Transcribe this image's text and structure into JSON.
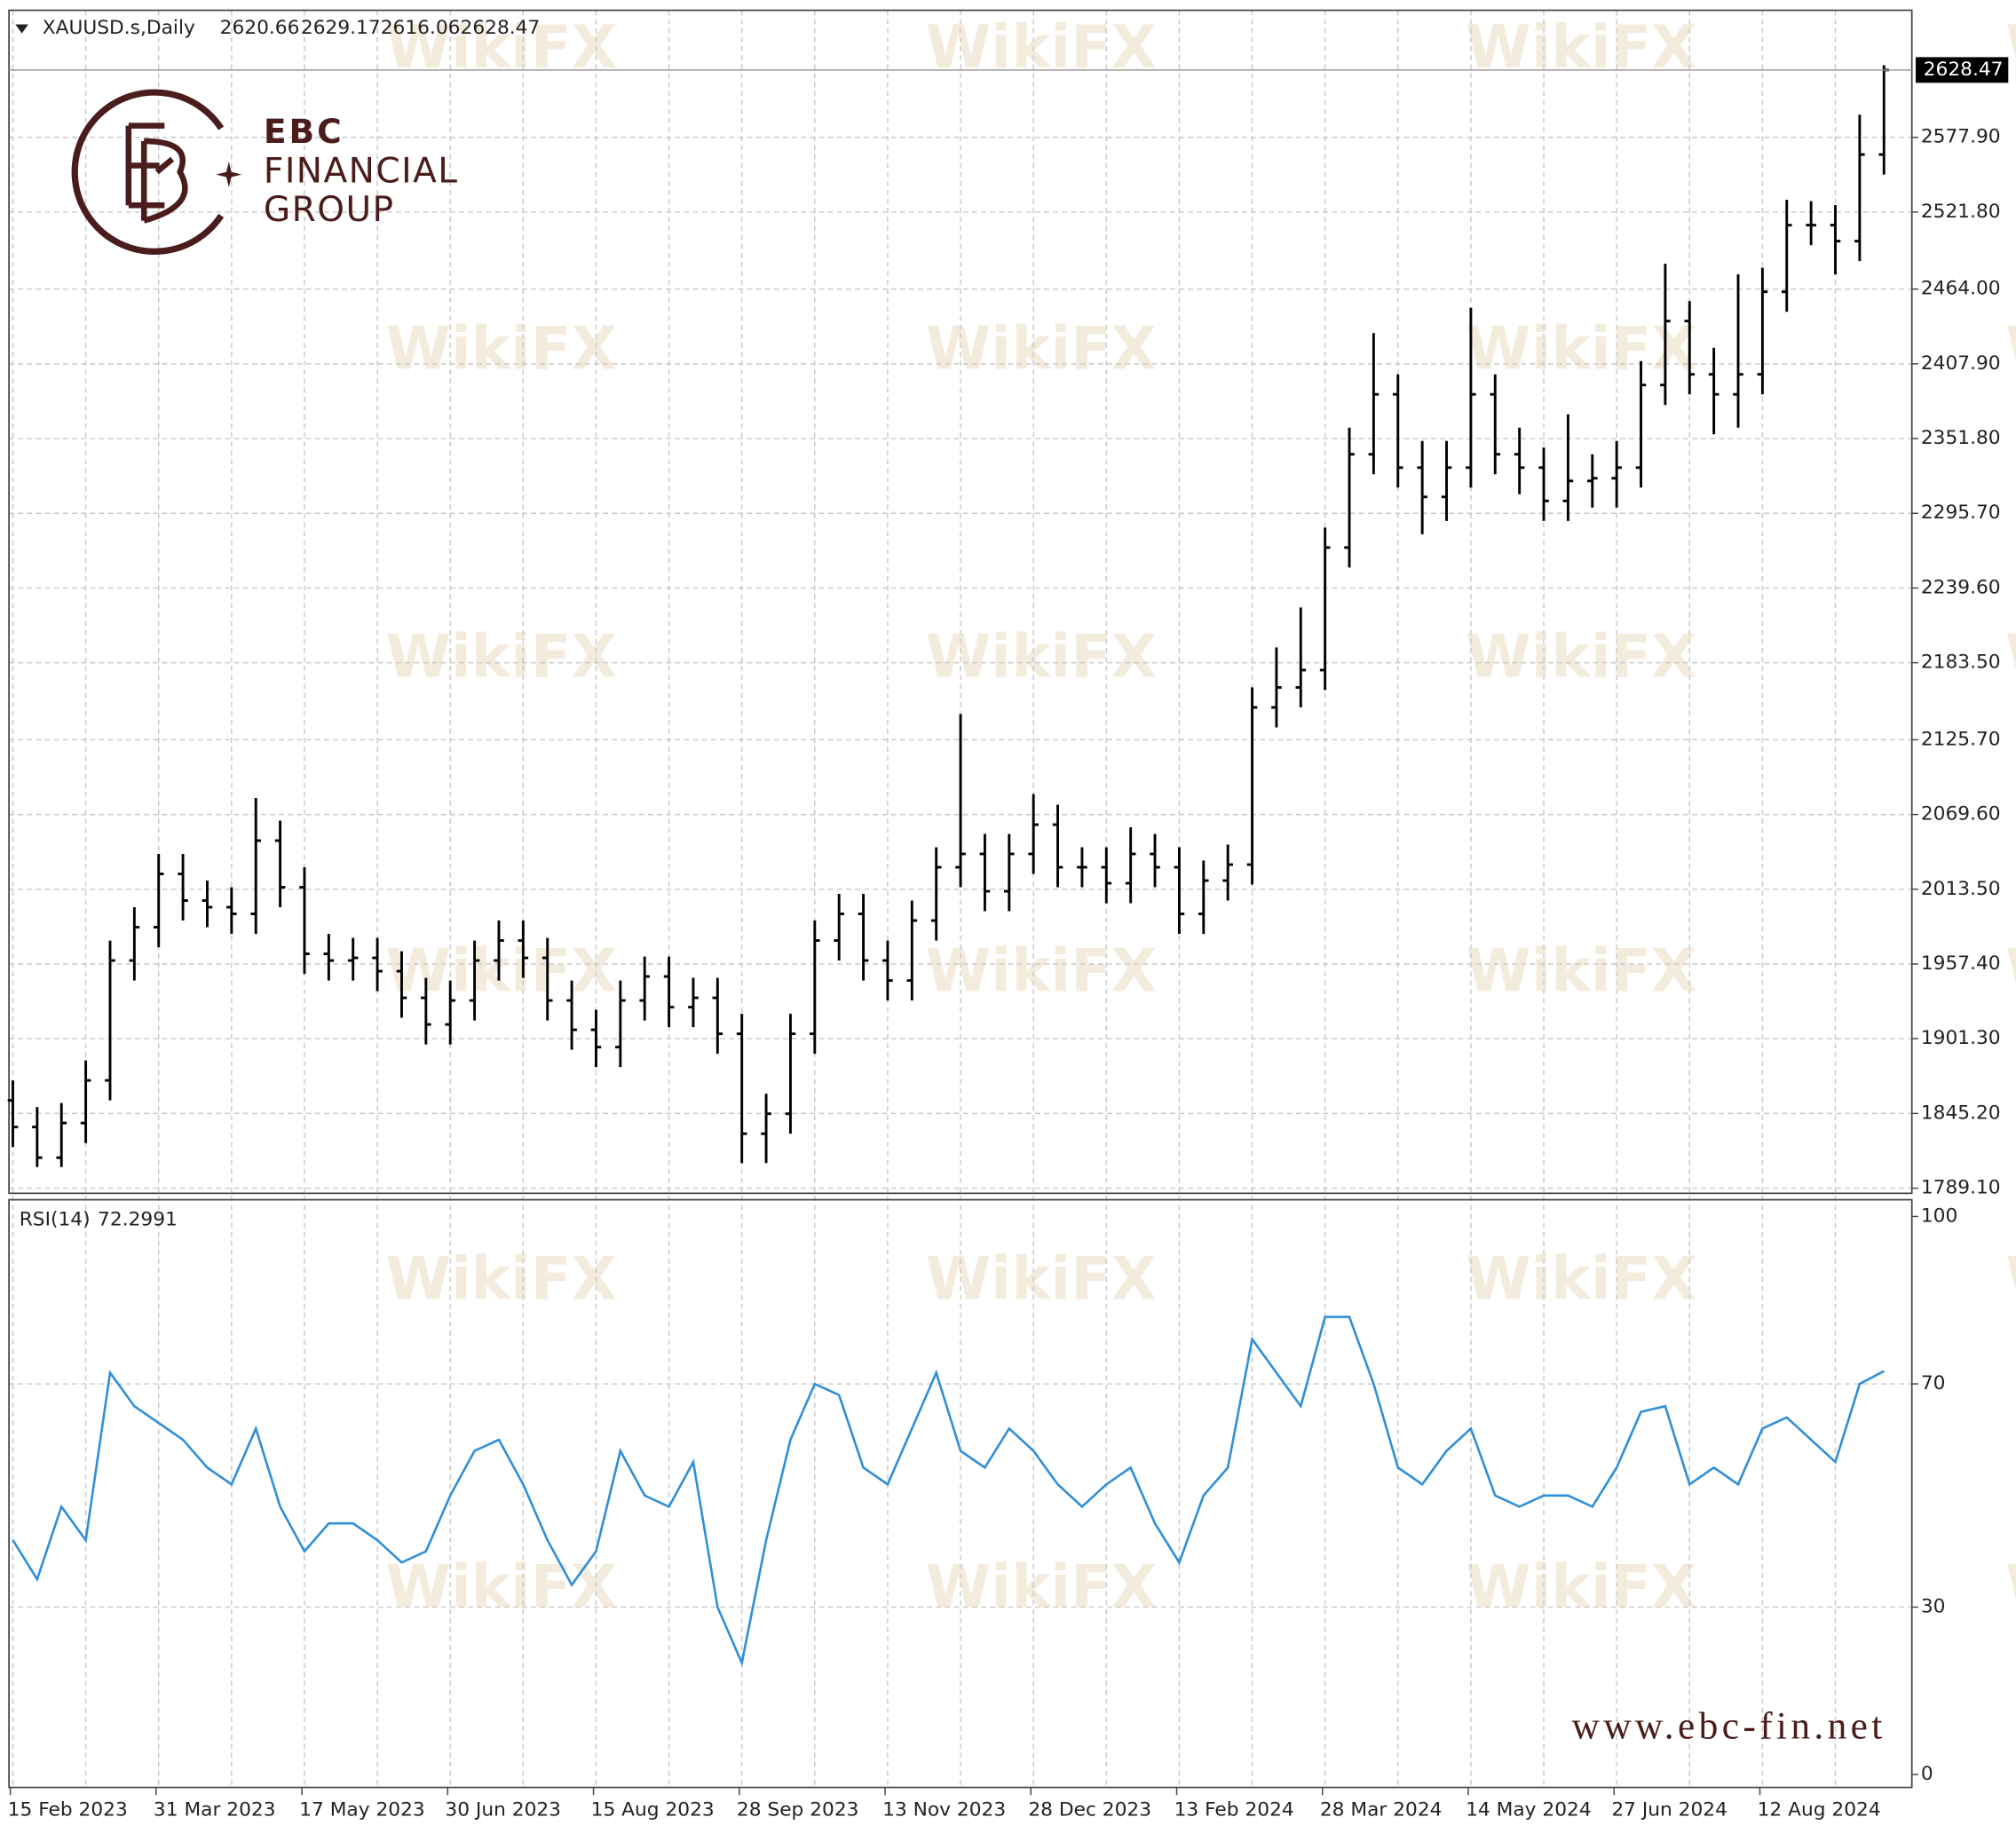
{
  "header": {
    "symbol": "XAUUSD.s,Daily",
    "values": [
      2620.66,
      2629.17,
      2616.06,
      2628.47
    ]
  },
  "logo": {
    "name": "EBC",
    "line1": "FINANCIAL",
    "line2": "GROUP"
  },
  "website": "www.ebc-fin.net",
  "watermark": "WikiFX",
  "chart_data": [
    {
      "type": "ohlc",
      "color": "#000000",
      "grid": true,
      "open": [
        1855,
        1835,
        1812,
        1838,
        1870,
        1960,
        1985,
        2025,
        2005,
        2000,
        1995,
        2050,
        2015,
        1965,
        1960,
        1962,
        1952,
        1932,
        1912,
        1930,
        1960,
        1975,
        1962,
        1930,
        1908,
        1895,
        1930,
        1948,
        1925,
        1932,
        1905,
        1830,
        1845,
        1905,
        1975,
        1995,
        1960,
        1945,
        1990,
        2030,
        2040,
        2012,
        2040,
        2062,
        2030,
        2030,
        2018,
        2040,
        2030,
        1995,
        2020,
        2032,
        2150,
        2165,
        2178,
        2270,
        2340,
        2385,
        2330,
        2308,
        2330,
        2385,
        2340,
        2330,
        2305,
        2320,
        2322,
        2330,
        2392,
        2440,
        2400,
        2385,
        2400,
        2462,
        2512,
        2512,
        2500,
        2565
      ],
      "high": [
        1870,
        1850,
        1853,
        1885,
        1975,
        2000,
        2040,
        2040,
        2020,
        2015,
        2082,
        2065,
        2030,
        1980,
        1977,
        1977,
        1967,
        1947,
        1945,
        1975,
        1990,
        1990,
        1977,
        1945,
        1923,
        1945,
        1963,
        1963,
        1947,
        1947,
        1920,
        1860,
        1920,
        1990,
        2010,
        2010,
        1975,
        2005,
        2045,
        2145,
        2055,
        2055,
        2085,
        2077,
        2045,
        2045,
        2060,
        2055,
        2045,
        2035,
        2047,
        2165,
        2195,
        2225,
        2285,
        2360,
        2431,
        2400,
        2350,
        2350,
        2450,
        2400,
        2360,
        2345,
        2370,
        2340,
        2350,
        2410,
        2483,
        2455,
        2420,
        2475,
        2480,
        2531,
        2530,
        2527,
        2595,
        2632
      ],
      "low": [
        1820,
        1805,
        1805,
        1823,
        1855,
        1945,
        1970,
        1990,
        1985,
        1980,
        1980,
        2000,
        1950,
        1945,
        1945,
        1937,
        1917,
        1897,
        1897,
        1915,
        1945,
        1947,
        1915,
        1893,
        1880,
        1880,
        1915,
        1910,
        1910,
        1890,
        1808,
        1808,
        1830,
        1890,
        1960,
        1945,
        1930,
        1930,
        1975,
        2015,
        1997,
        1997,
        2025,
        2015,
        2015,
        2003,
        2003,
        2015,
        1980,
        1980,
        2005,
        2017,
        2135,
        2150,
        2163,
        2255,
        2325,
        2315,
        2280,
        2290,
        2315,
        2325,
        2310,
        2290,
        2290,
        2300,
        2300,
        2315,
        2377,
        2385,
        2355,
        2360,
        2385,
        2447,
        2497,
        2475,
        2485,
        2550
      ],
      "close": [
        1835,
        1812,
        1838,
        1870,
        1960,
        1985,
        2025,
        2005,
        2000,
        1995,
        2050,
        2015,
        1965,
        1960,
        1962,
        1952,
        1932,
        1912,
        1930,
        1960,
        1975,
        1962,
        1930,
        1908,
        1895,
        1930,
        1948,
        1925,
        1932,
        1905,
        1830,
        1845,
        1905,
        1975,
        1995,
        1960,
        1945,
        1990,
        2030,
        2040,
        2012,
        2040,
        2062,
        2030,
        2030,
        2018,
        2040,
        2030,
        1995,
        2020,
        2032,
        2150,
        2165,
        2178,
        2270,
        2340,
        2385,
        2330,
        2308,
        2330,
        2385,
        2340,
        2330,
        2305,
        2320,
        2322,
        2330,
        2392,
        2440,
        2400,
        2385,
        2400,
        2462,
        2512,
        2512,
        2500,
        2565,
        2628.47
      ],
      "ylim": [
        1785.25,
        2673.3
      ],
      "yticks": [
        {
          "value": 1789.1,
          "label": "1789.10"
        },
        {
          "value": 1845.2,
          "label": "1845.20"
        },
        {
          "value": 1901.3,
          "label": "1901.30"
        },
        {
          "value": 1957.4,
          "label": "1957.40"
        },
        {
          "value": 2013.5,
          "label": "2013.50"
        },
        {
          "value": 2069.6,
          "label": "2069.60"
        },
        {
          "value": 2125.7,
          "label": "2125.70"
        },
        {
          "value": 2183.5,
          "label": "2183.50"
        },
        {
          "value": 2239.6,
          "label": "2239.60"
        },
        {
          "value": 2295.7,
          "label": "2295.70"
        },
        {
          "value": 2351.8,
          "label": "2351.80"
        },
        {
          "value": 2407.9,
          "label": "2407.90"
        },
        {
          "value": 2464,
          "label": "2464.00"
        },
        {
          "value": 2521.8,
          "label": "2521.80"
        },
        {
          "value": 2577.9,
          "label": "2577.90"
        }
      ],
      "last_price": 2628.47
    },
    {
      "type": "line",
      "title": "RSI(14)",
      "last_value": 72.2991,
      "color": "#2f8fd8",
      "grid": true,
      "categories": [
        "15 Feb 2023",
        null,
        null,
        null,
        null,
        null,
        "31 Mar 2023",
        null,
        null,
        null,
        null,
        null,
        "17 May 2023",
        null,
        null,
        null,
        null,
        null,
        "30 Jun 2023",
        null,
        null,
        null,
        null,
        null,
        "15 Aug 2023",
        null,
        null,
        null,
        null,
        null,
        "28 Sep 2023",
        null,
        null,
        null,
        null,
        null,
        "13 Nov 2023",
        null,
        null,
        null,
        null,
        null,
        "28 Dec 2023",
        null,
        null,
        null,
        null,
        null,
        "13 Feb 2024",
        null,
        null,
        null,
        null,
        null,
        "28 Mar 2024",
        null,
        null,
        null,
        null,
        null,
        "14 May 2024",
        null,
        null,
        null,
        null,
        null,
        "27 Jun 2024",
        null,
        null,
        null,
        null,
        null,
        "12 Aug 2024",
        null,
        null,
        null,
        null,
        null
      ],
      "values": [
        42,
        35,
        48,
        42,
        72,
        66,
        63,
        60,
        55,
        52,
        62,
        48,
        40,
        45,
        45,
        42,
        38,
        40,
        50,
        58,
        60,
        52,
        42,
        34,
        40,
        58,
        50,
        48,
        56,
        30,
        20,
        42,
        60,
        70,
        68,
        55,
        52,
        62,
        72,
        58,
        55,
        62,
        58,
        52,
        48,
        52,
        55,
        45,
        38,
        50,
        55,
        78,
        72,
        66,
        82,
        82,
        70,
        55,
        52,
        58,
        62,
        50,
        48,
        50,
        50,
        48,
        55,
        65,
        66,
        52,
        55,
        52,
        62,
        64,
        60,
        56,
        70,
        72.3
      ],
      "ylim": [
        -2.3,
        103
      ],
      "yticks": [
        0,
        30,
        70,
        100
      ]
    }
  ]
}
